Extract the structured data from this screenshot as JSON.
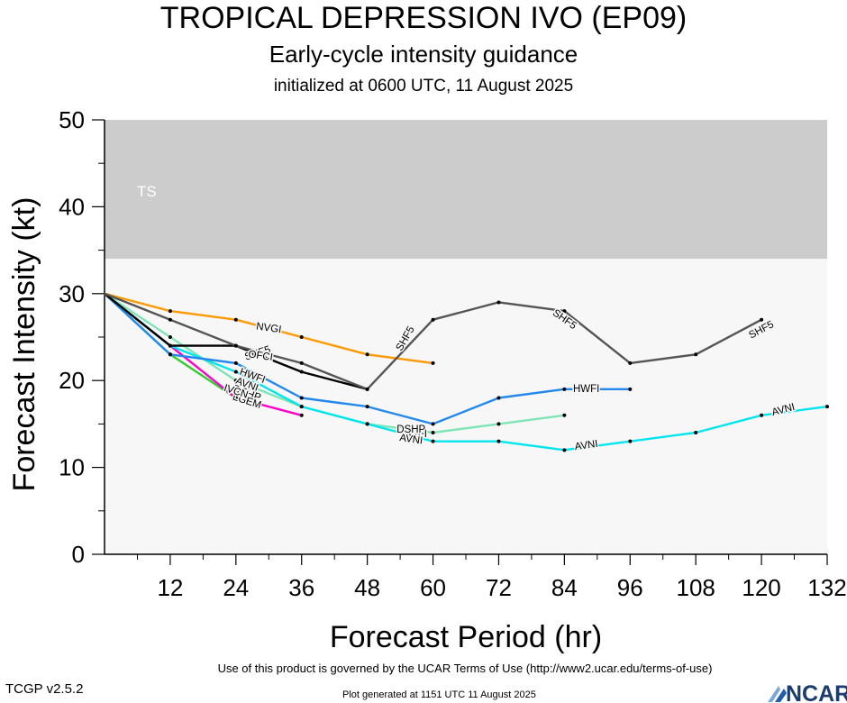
{
  "title": "TROPICAL DEPRESSION IVO (EP09)",
  "subtitle": "Early-cycle intensity guidance",
  "initialized": "initialized at 0600 UTC, 11 August 2025",
  "footer": {
    "terms": "Use of this product is governed by the UCAR Terms of Use (http://www2.ucar.edu/terms-of-use)",
    "version": "TCGP v2.5.2",
    "generated": "Plot generated at 1151 UTC   11 August 2025",
    "logo_text": "NCAR"
  },
  "chart_data": {
    "type": "line",
    "xlabel": "Forecast Period (hr)",
    "ylabel": "Forecast Intensity (kt)",
    "xlim": [
      0,
      132
    ],
    "ylim": [
      0,
      50
    ],
    "xticks": [
      12,
      24,
      36,
      48,
      60,
      72,
      84,
      96,
      108,
      120,
      132
    ],
    "yticks": [
      0,
      10,
      20,
      30,
      40,
      50
    ],
    "bands": [
      {
        "label": "TS",
        "from": 34,
        "to": 50,
        "color": "#cccccc"
      },
      {
        "label": "",
        "from": 0,
        "to": 34,
        "color": "#f7f7f7"
      }
    ],
    "series": [
      {
        "name": "SHF5",
        "color": "#555555",
        "points": [
          [
            0,
            30
          ],
          [
            12,
            27
          ],
          [
            24,
            24
          ],
          [
            36,
            22
          ],
          [
            48,
            19
          ],
          [
            60,
            27
          ],
          [
            72,
            29
          ],
          [
            84,
            28
          ],
          [
            96,
            22
          ],
          [
            108,
            23
          ],
          [
            120,
            27
          ]
        ],
        "labels": [
          [
            28,
            23.1,
            -18
          ],
          [
            55,
            24.8,
            -60
          ],
          [
            84,
            27,
            35
          ],
          [
            120,
            25.8,
            -28
          ]
        ]
      },
      {
        "name": "NVGI",
        "color": "#ff9900",
        "points": [
          [
            0,
            30
          ],
          [
            12,
            28
          ],
          [
            24,
            27
          ],
          [
            36,
            25
          ],
          [
            48,
            23
          ],
          [
            60,
            22
          ]
        ],
        "labels": [
          [
            30,
            26,
            8
          ]
        ]
      },
      {
        "name": "OFCI",
        "color": "#000000",
        "points": [
          [
            0,
            30
          ],
          [
            12,
            24
          ],
          [
            24,
            24
          ],
          [
            36,
            21
          ],
          [
            48,
            19
          ]
        ],
        "labels": [
          [
            28.5,
            22.8,
            8
          ]
        ]
      },
      {
        "name": "HWFI",
        "color": "#2288ee",
        "points": [
          [
            0,
            30
          ],
          [
            12,
            23
          ],
          [
            24,
            22
          ],
          [
            36,
            18
          ],
          [
            48,
            17
          ],
          [
            60,
            15
          ],
          [
            72,
            18
          ],
          [
            84,
            19
          ],
          [
            96,
            19
          ]
        ],
        "labels": [
          [
            27,
            20.5,
            20
          ],
          [
            56.5,
            13.8,
            0
          ],
          [
            88,
            19,
            0
          ]
        ]
      },
      {
        "name": "AVNI",
        "color": "#00e5ee",
        "points": [
          [
            0,
            30
          ],
          [
            12,
            24
          ],
          [
            24,
            21
          ],
          [
            36,
            17
          ],
          [
            48,
            15
          ],
          [
            60,
            13
          ],
          [
            72,
            13
          ],
          [
            84,
            12
          ],
          [
            96,
            13
          ],
          [
            108,
            14
          ],
          [
            120,
            16
          ],
          [
            132,
            17
          ]
        ],
        "labels": [
          [
            26,
            19.5,
            20
          ],
          [
            56,
            13.2,
            8
          ],
          [
            88,
            12.5,
            -8
          ],
          [
            124,
            16.6,
            -15
          ]
        ]
      },
      {
        "name": "DSHP",
        "color": "#7fe5b6",
        "points": [
          [
            0,
            30
          ],
          [
            12,
            25
          ],
          [
            24,
            20
          ],
          [
            36,
            17
          ],
          [
            48,
            15
          ],
          [
            60,
            14
          ],
          [
            72,
            15
          ],
          [
            84,
            16
          ]
        ],
        "labels": [
          [
            26,
            18.5,
            20
          ],
          [
            56,
            14.3,
            0
          ]
        ]
      },
      {
        "name": "LGEM",
        "color": "#ff00cc",
        "points": [
          [
            0,
            30
          ],
          [
            12,
            24
          ],
          [
            24,
            18
          ],
          [
            36,
            16
          ]
        ],
        "labels": [
          [
            26,
            17.6,
            18
          ]
        ]
      },
      {
        "name": "IVCN",
        "color": "#33cc33",
        "points": [
          [
            0,
            30
          ],
          [
            12,
            23
          ],
          [
            24,
            18
          ]
        ],
        "labels": [
          [
            24,
            18.7,
            18
          ]
        ]
      }
    ]
  }
}
